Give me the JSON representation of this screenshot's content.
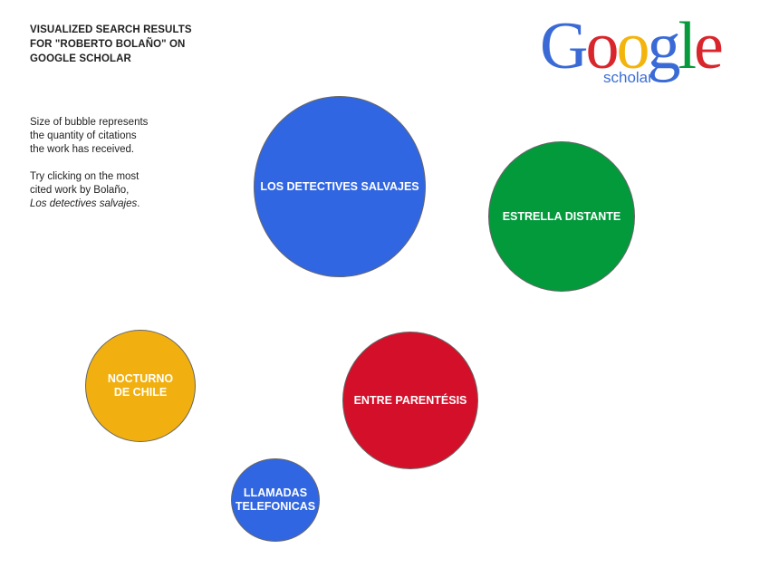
{
  "header": {
    "title_lines": [
      "VISUALIZED SEARCH RESULTS",
      "FOR \"ROBERTO BOLAÑO\" ON",
      "GOOGLE SCHOLAR"
    ]
  },
  "description": {
    "lines": [
      "Size of bubble represents",
      "the quantity of citations",
      "the work has received."
    ],
    "hint_lines": [
      "Try clicking on the most",
      "cited work by Bolaño,"
    ],
    "hint_italic": "Los detectives salvajes",
    "hint_end": "."
  },
  "logo": {
    "letters": [
      "G",
      "o",
      "o",
      "g",
      "l",
      "e"
    ],
    "sub": "scholar",
    "colors": [
      "#3a6ad6",
      "#d8262c",
      "#f3b40d",
      "#3a6ad6",
      "#069a3c",
      "#d8262c"
    ],
    "sub_color": "#3b6fd6"
  },
  "bubbles": [
    {
      "label": "LOS DETECTIVES SALVAJES",
      "color": "#3166e2"
    },
    {
      "label": "ESTRELLA DISTANTE",
      "color": "#039a3c"
    },
    {
      "label": "NOCTURNO DE CHILE",
      "color": "#f1b00f"
    },
    {
      "label": "ENTRE PARENTÉSIS",
      "color": "#d40f29"
    },
    {
      "label": "LLAMADAS TELEFONICAS",
      "color": "#3166e2"
    }
  ]
}
